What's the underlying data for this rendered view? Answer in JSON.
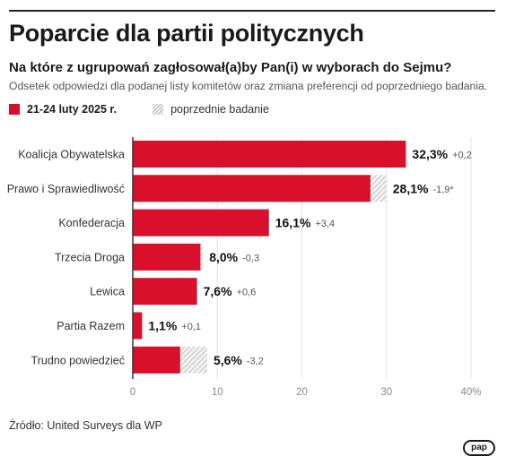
{
  "title": "Poparcie dla partii politycznych",
  "subtitle": "Na które z ugrupowań zagłosował(a)by Pan(i) w wyborach do Sejmu?",
  "description": "Odsetek odpowiedzi dla podanej listy komitetów oraz zmiana preferencji od poprzedniego badania.",
  "legend": {
    "current": "21-24 luty 2025 r.",
    "previous": "poprzednie badanie"
  },
  "source": "Źródło: United Surveys dla WP",
  "logo": "pap",
  "colors": {
    "current": "#d8102c",
    "previous_hatch": "#c8c8c8",
    "axis": "#333333",
    "grid": "#e2e2e2"
  },
  "chart_data": {
    "type": "bar",
    "orientation": "horizontal",
    "categories": [
      "Koalicja Obywatelska",
      "Prawo i Sprawiedliwość",
      "Konfederacja",
      "Trzecia Droga",
      "Lewica",
      "Partia Razem",
      "Trudno powiedzieć"
    ],
    "series": [
      {
        "name": "21-24 luty 2025 r.",
        "values": [
          32.3,
          28.1,
          16.1,
          8.0,
          7.6,
          1.1,
          5.6
        ]
      },
      {
        "name": "poprzednie badanie",
        "values": [
          32.1,
          30.0,
          12.7,
          8.3,
          7.0,
          1.0,
          8.8
        ]
      }
    ],
    "value_labels": [
      "32,3%",
      "28,1%",
      "16,1%",
      "8,0%",
      "7,6%",
      "1,1%",
      "5,6%"
    ],
    "change_labels": [
      "+0,2",
      "-1,9*",
      "+3,4",
      "-0,3",
      "+0,6",
      "+0,1",
      "-3,2"
    ],
    "xlim": [
      0,
      40
    ],
    "xticks": [
      "0",
      "10",
      "20",
      "30",
      "40%"
    ],
    "grid": true,
    "legend_position": "top-left"
  }
}
